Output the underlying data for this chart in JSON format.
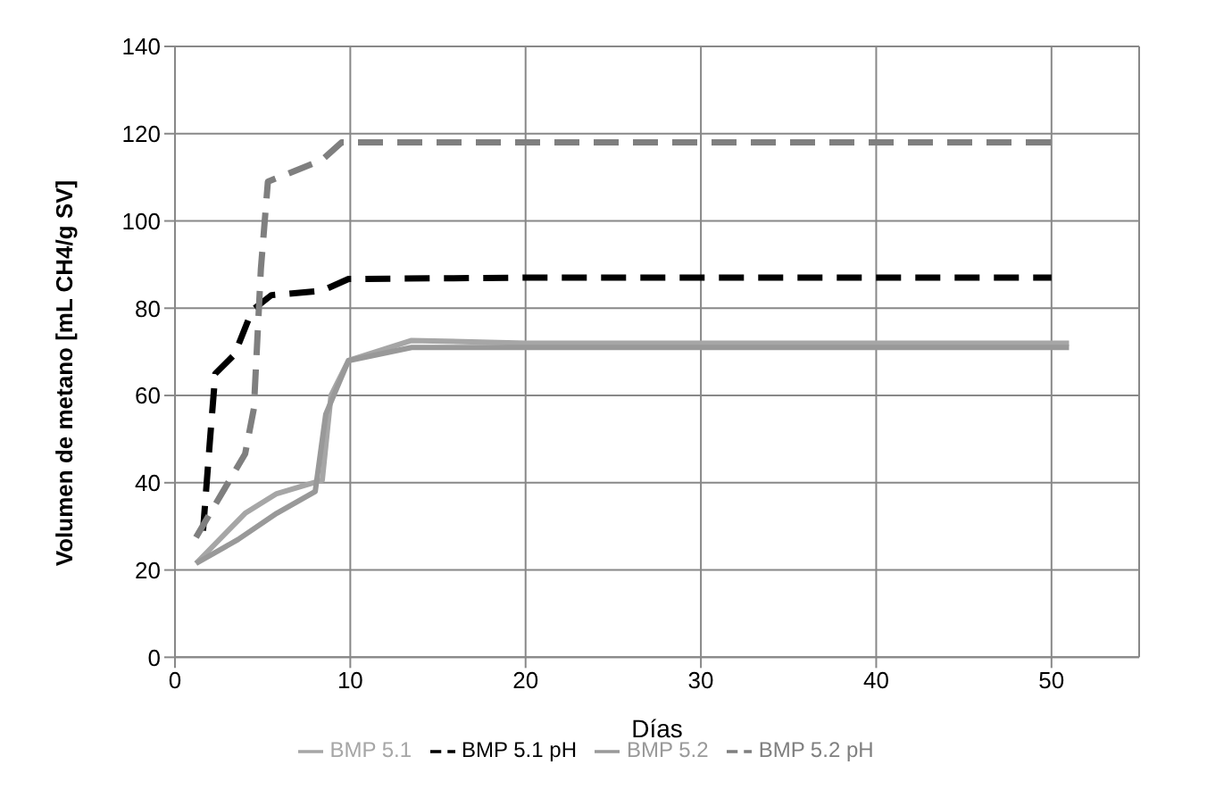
{
  "chart_data": {
    "type": "line",
    "xlabel": "Días",
    "ylabel": "Volumen  de  metano  [mL  CH4/g SV]",
    "xlim": [
      0,
      55
    ],
    "xticks": [
      0,
      10,
      20,
      30,
      40,
      50
    ],
    "ylim": [
      0,
      140
    ],
    "yticks": [
      0,
      20,
      40,
      60,
      80,
      100,
      120,
      140
    ],
    "grid": true,
    "legend": "bottom",
    "marker": "none",
    "series": [
      {
        "name": "BMP 5.1",
        "color": "#a6a6a6",
        "line_style": "solid",
        "x": [
          1.2,
          4,
          5.8,
          8.4,
          8.9,
          9.9,
          13.5,
          20,
          30,
          40,
          51
        ],
        "values": [
          21.5,
          33,
          37.5,
          40.6,
          60,
          68,
          72.6,
          72,
          72,
          72,
          72
        ]
      },
      {
        "name": "BMP 5.2",
        "color": "#999999",
        "line_style": "solid",
        "x": [
          1.2,
          3.6,
          5.8,
          8,
          8.6,
          9.9,
          13.5,
          20,
          30,
          40,
          51
        ],
        "values": [
          21.5,
          27,
          33,
          38,
          55.7,
          68,
          71,
          71,
          71,
          71,
          71
        ]
      },
      {
        "name": "BMP 5.1 pH",
        "color": "#000000",
        "line_style": "dashed",
        "x": [
          1.6,
          2,
          2.3,
          3.4,
          4.4,
          5.5,
          8.4,
          9.9,
          20,
          30,
          40,
          50
        ],
        "values": [
          29,
          50,
          65,
          69.4,
          79.5,
          83,
          84,
          86.7,
          87,
          87,
          87,
          87
        ]
      },
      {
        "name": "BMP 5.2 pH",
        "color": "#7f7f7f",
        "line_style": "dashed",
        "x": [
          1.2,
          4,
          4.5,
          4.9,
          5.3,
          8.4,
          9.5,
          20,
          30,
          40,
          50
        ],
        "values": [
          27.5,
          46.6,
          57,
          89,
          109,
          114,
          118,
          118,
          118,
          118,
          118
        ]
      }
    ]
  }
}
